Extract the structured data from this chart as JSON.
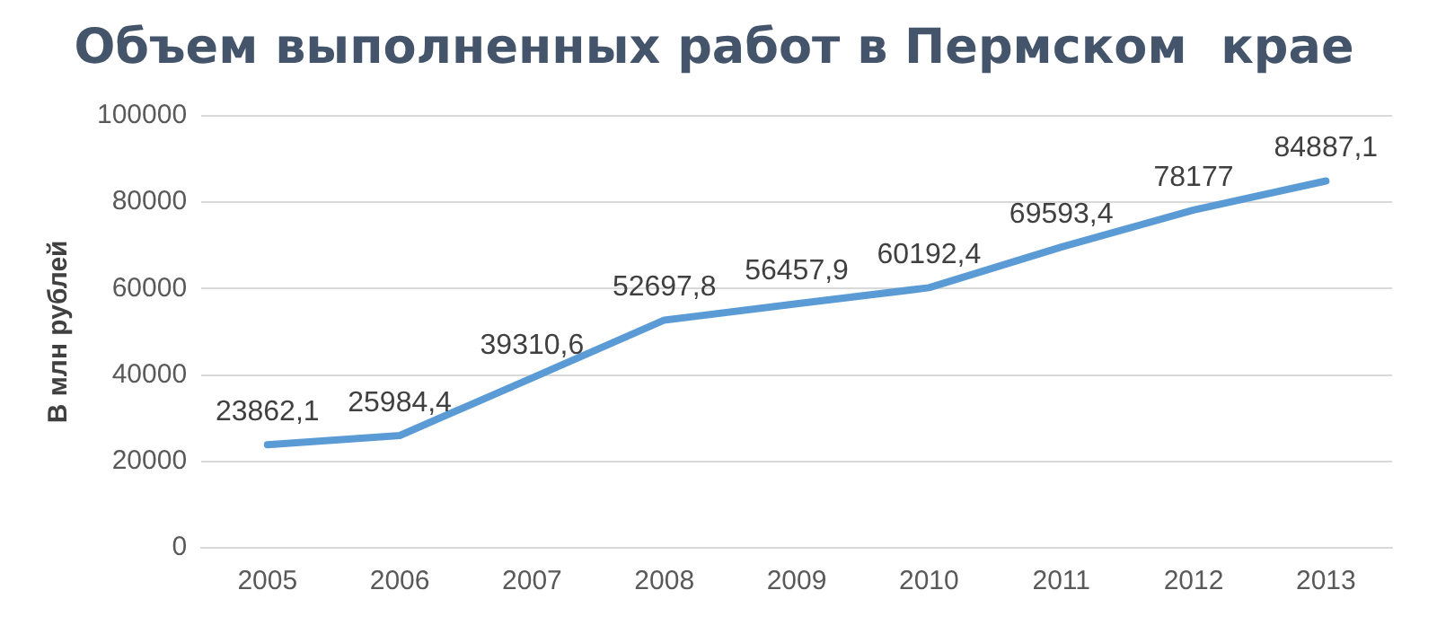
{
  "chart_data": {
    "type": "line",
    "title": "Объем выполненных работ в Пермском  крае",
    "ylabel": "В млн рублей",
    "categories": [
      "2005",
      "2006",
      "2007",
      "2008",
      "2009",
      "2010",
      "2011",
      "2012",
      "2013"
    ],
    "series": [
      {
        "color": "#5b9bd5",
        "values": [
          23862.1,
          25984.4,
          39310.6,
          52697.8,
          56457.9,
          60192.4,
          69593.4,
          78177,
          84887.1
        ],
        "value_labels": [
          "23862,1",
          "25984,4",
          "39310,6",
          "52697,8",
          "56457,9",
          "60192,4",
          "69593,4",
          "78177",
          "84887,1"
        ]
      }
    ],
    "ylim": [
      0,
      100000
    ],
    "yticks": [
      0,
      20000,
      40000,
      60000,
      80000,
      100000
    ],
    "grid": "y",
    "legend": false,
    "marker": "none",
    "line_style": "solid"
  }
}
